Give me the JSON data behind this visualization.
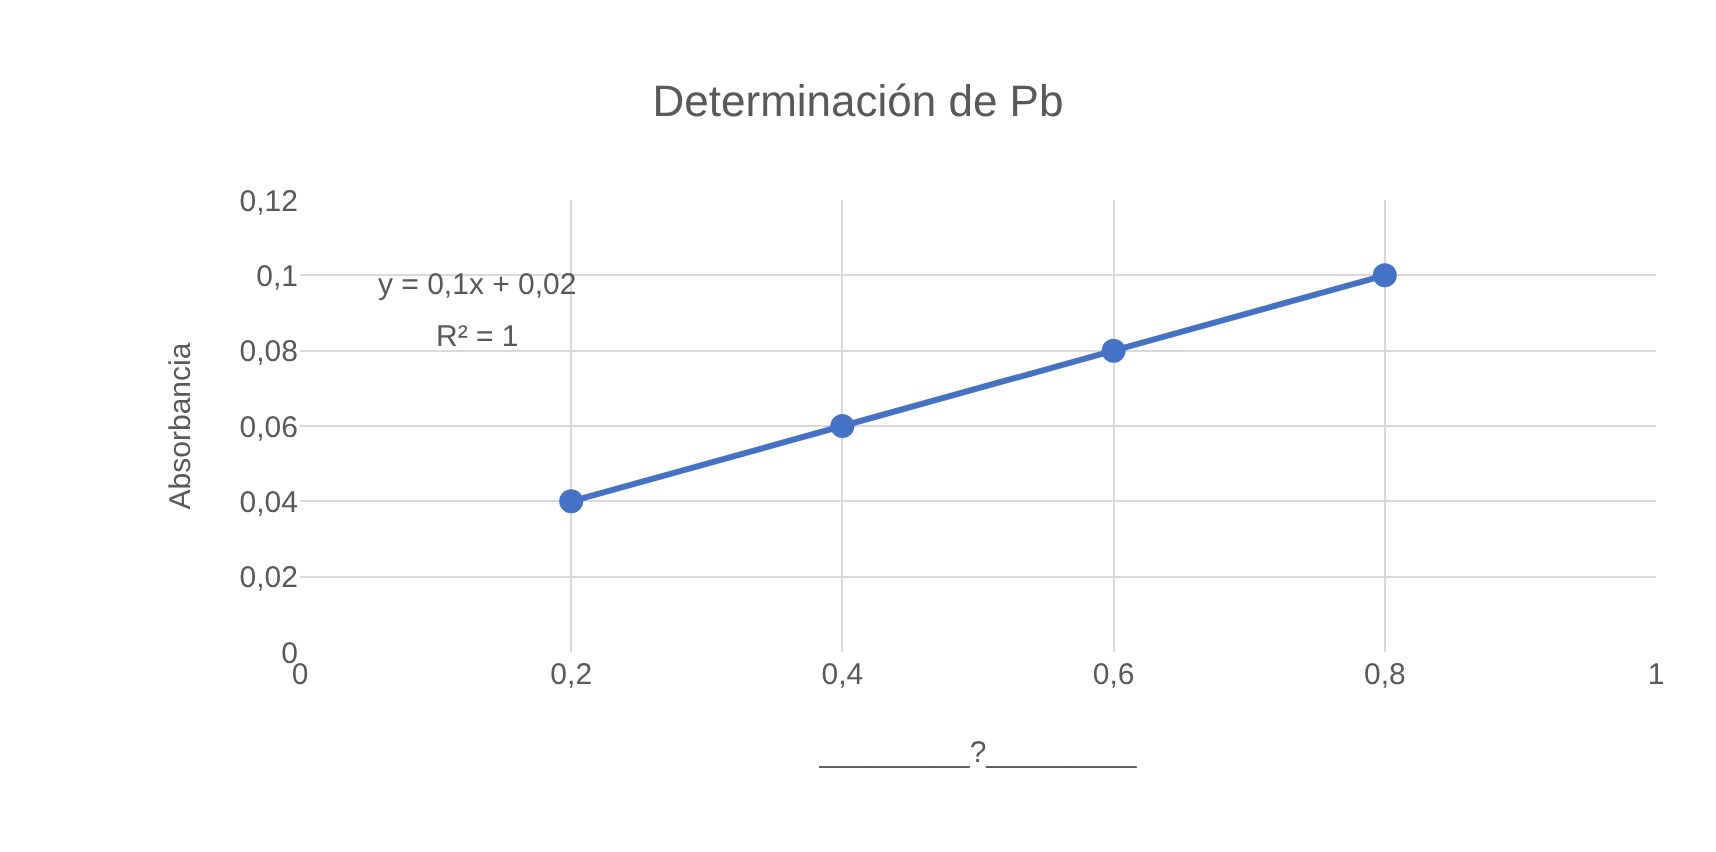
{
  "chart_data": {
    "type": "line",
    "title": "Determinación de Pb",
    "xlabel": "_________?_________",
    "ylabel": "Absorbancia",
    "x": [
      0.2,
      0.4,
      0.6,
      0.8
    ],
    "series": [
      {
        "color": "#4472c4",
        "values": [
          0.04,
          0.06,
          0.08,
          0.1
        ]
      }
    ],
    "xlim": [
      0,
      1
    ],
    "xticks": [
      0,
      {
        "value": 0.2,
        "label": "0,2"
      },
      {
        "value": 0.4,
        "label": "0,4"
      },
      {
        "value": 0.6,
        "label": "0,6"
      },
      {
        "value": 0.8,
        "label": "0,8"
      },
      1
    ],
    "ylim": [
      0,
      0.12
    ],
    "yticks": [
      0,
      {
        "value": 0.02,
        "label": "0,02"
      },
      {
        "value": 0.04,
        "label": "0,04"
      },
      {
        "value": 0.06,
        "label": "0,06"
      },
      {
        "value": 0.08,
        "label": "0,08"
      },
      {
        "value": 0.1,
        "label": "0,1"
      },
      {
        "value": 0.12,
        "label": "0,12"
      }
    ],
    "annotations": [
      "y = 0,1x + 0,02",
      "R² = 1"
    ],
    "grid": true,
    "marker": "circle",
    "line_style": "solid"
  }
}
